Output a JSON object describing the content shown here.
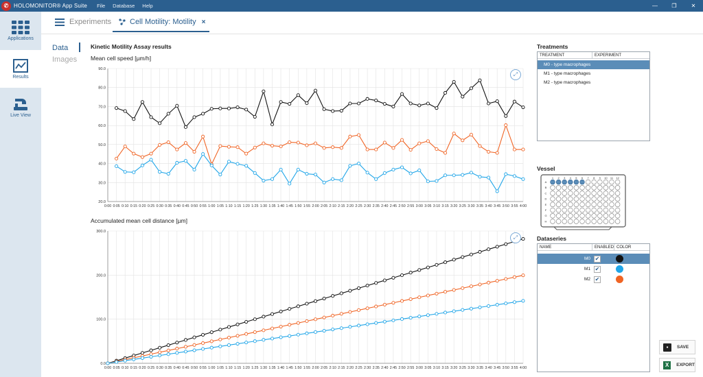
{
  "titlebar": {
    "app_title": "HOLOMONITOR® App Suite",
    "menu": [
      "File",
      "Database",
      "Help"
    ]
  },
  "leftnav": {
    "items": [
      {
        "label": "Applications",
        "icon": "apps-grid-icon"
      },
      {
        "label": "Results",
        "icon": "chart-icon"
      },
      {
        "label": "Live View",
        "icon": "microscope-icon"
      }
    ]
  },
  "tabs": {
    "experiments": "Experiments",
    "motility": "Cell Motility: Motility",
    "close": "×"
  },
  "sidetabs": {
    "data": "Data",
    "images": "Images"
  },
  "results_title": "Kinetic Motility Assay results",
  "colors": {
    "M0": "#111111",
    "M1": "#1fa5e8",
    "M2": "#f06424",
    "accent": "#2b5f8f",
    "selected": "#5b8db8"
  },
  "x_ticks": [
    "0:00",
    "0:05",
    "0:10",
    "0:15",
    "0:20",
    "0:25",
    "0:30",
    "0:35",
    "0:40",
    "0:45",
    "0:50",
    "0:55",
    "1:00",
    "1:05",
    "1:10",
    "1:15",
    "1:20",
    "1:25",
    "1:30",
    "1:35",
    "1:40",
    "1:45",
    "1:50",
    "1:55",
    "2:00",
    "2:05",
    "2:10",
    "2:15",
    "2:20",
    "2:25",
    "2:30",
    "2:35",
    "2:40",
    "2:45",
    "2:50",
    "2:55",
    "3:00",
    "3:05",
    "3:10",
    "3:15",
    "3:20",
    "3:25",
    "3:30",
    "3:35",
    "3:40",
    "3:45",
    "3:50",
    "3:55",
    "4:00"
  ],
  "chart_data": [
    {
      "type": "line",
      "title": "Mean cell speed [µm/h]",
      "xlabel": "",
      "ylabel": "",
      "ylim": [
        20,
        90
      ],
      "yticks": [
        "20.0",
        "30.0",
        "40.0",
        "50.0",
        "60.0",
        "70.0",
        "80.0",
        "90.0"
      ],
      "grid": true,
      "series": [
        {
          "name": "M0",
          "values": [
            69.2,
            67.6,
            63.4,
            72.4,
            64.4,
            61.2,
            66.2,
            70.4,
            59.2,
            64.4,
            66.2,
            68.8,
            69.0,
            69.0,
            69.6,
            68.4,
            64.6,
            78.0,
            60.6,
            72.4,
            71.4,
            76.0,
            71.8,
            78.4,
            68.6,
            67.6,
            67.8,
            71.6,
            71.6,
            74.0,
            73.2,
            71.4,
            70.0,
            76.6,
            71.6,
            70.6,
            71.6,
            69.2,
            77.2,
            83.0,
            75.2,
            79.6,
            83.8,
            71.6,
            72.8,
            65.0,
            72.6,
            69.6
          ]
        },
        {
          "name": "M2",
          "values": [
            42.6,
            49.0,
            45.2,
            43.4,
            45.2,
            49.8,
            51.2,
            47.4,
            50.8,
            46.2,
            54.2,
            39.6,
            49.2,
            48.8,
            48.6,
            45.2,
            48.4,
            50.6,
            49.4,
            49.0,
            51.2,
            51.0,
            49.6,
            50.6,
            48.2,
            48.6,
            48.2,
            54.2,
            55.0,
            47.4,
            47.4,
            51.0,
            48.2,
            52.4,
            47.2,
            50.6,
            51.8,
            47.6,
            45.6,
            55.8,
            52.2,
            55.2,
            49.2,
            46.2,
            45.6,
            60.2,
            47.4,
            47.4
          ]
        },
        {
          "name": "M1",
          "values": [
            38.6,
            35.6,
            35.4,
            39.0,
            42.0,
            35.6,
            34.6,
            40.4,
            41.4,
            36.8,
            45.0,
            39.0,
            34.2,
            41.0,
            39.8,
            38.8,
            35.0,
            31.0,
            31.8,
            36.8,
            29.4,
            36.8,
            34.6,
            34.2,
            30.0,
            31.8,
            31.2,
            38.8,
            40.0,
            35.2,
            31.8,
            35.0,
            36.8,
            38.0,
            34.8,
            36.4,
            30.6,
            30.8,
            33.8,
            33.8,
            34.0,
            35.2,
            33.0,
            32.6,
            25.4,
            34.4,
            33.4,
            31.8
          ]
        }
      ]
    },
    {
      "type": "line",
      "title": "Accumulated mean cell distance [µm]",
      "xlabel": "",
      "ylabel": "",
      "ylim": [
        0,
        300
      ],
      "yticks": [
        "0.0",
        "100.0",
        "200.0",
        "300.0"
      ],
      "grid": true,
      "series": [
        {
          "name": "M0",
          "end_value": 282.0
        },
        {
          "name": "M2",
          "end_value": 199.5
        },
        {
          "name": "M1",
          "end_value": 141.6
        }
      ]
    }
  ],
  "treatments": {
    "title": "Treatments",
    "columns": [
      "TREATMENT",
      "EXPERIMENT"
    ],
    "rows": [
      "M0 - type macrophages",
      "M1 - type macrophages",
      "M2 - type macrophages"
    ],
    "selected": 0
  },
  "vessel": {
    "title": "Vessel",
    "rows": [
      "A",
      "B",
      "C",
      "D",
      "E",
      "F",
      "G",
      "H"
    ],
    "cols": [
      "1",
      "2",
      "3",
      "4",
      "5",
      "6",
      "7",
      "8",
      "9",
      "10",
      "11",
      "12"
    ],
    "filled_wells_row_A": 6
  },
  "dataseries": {
    "title": "Dataseries",
    "columns": [
      "NAME",
      "ENABLED",
      "COLOR"
    ],
    "rows": [
      {
        "name": "M0",
        "enabled": true,
        "color": "#111111"
      },
      {
        "name": "M1",
        "enabled": true,
        "color": "#1fa5e8"
      },
      {
        "name": "M2",
        "enabled": true,
        "color": "#f06424"
      }
    ],
    "selected": 0
  },
  "buttons": {
    "save": "SAVE",
    "export": "EXPORT"
  }
}
